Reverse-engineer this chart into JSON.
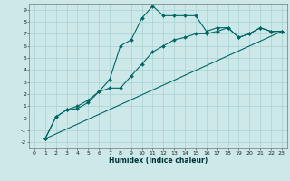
{
  "xlabel": "Humidex (Indice chaleur)",
  "bg_color": "#cce8e8",
  "grid_color": "#aad0d0",
  "line_color": "#006666",
  "xlim": [
    -0.5,
    23.5
  ],
  "ylim": [
    -2.5,
    9.5
  ],
  "xticks": [
    0,
    1,
    2,
    3,
    4,
    5,
    6,
    7,
    8,
    9,
    10,
    11,
    12,
    13,
    14,
    15,
    16,
    17,
    18,
    19,
    20,
    21,
    22,
    23
  ],
  "yticks": [
    -2,
    -1,
    0,
    1,
    2,
    3,
    4,
    5,
    6,
    7,
    8,
    9
  ],
  "line1_x": [
    1,
    2,
    3,
    4,
    5,
    6,
    7,
    8,
    9,
    10,
    11,
    12,
    13,
    14,
    15,
    16,
    17,
    18,
    19,
    20,
    21,
    22,
    23
  ],
  "line1_y": [
    -1.7,
    0.1,
    0.7,
    0.8,
    1.3,
    2.2,
    3.2,
    6.0,
    6.5,
    8.3,
    9.3,
    8.5,
    8.5,
    8.5,
    8.5,
    7.2,
    7.5,
    7.5,
    6.7,
    7.0,
    7.5,
    7.2,
    7.2
  ],
  "line2_x": [
    1,
    2,
    3,
    4,
    5,
    6,
    7,
    8,
    9,
    10,
    11,
    12,
    13,
    14,
    15,
    16,
    17,
    18,
    19,
    20,
    21,
    22,
    23
  ],
  "line2_y": [
    -1.7,
    0.1,
    0.7,
    1.0,
    1.5,
    2.2,
    2.5,
    2.5,
    3.5,
    4.5,
    5.5,
    6.0,
    6.5,
    6.7,
    7.0,
    7.0,
    7.2,
    7.5,
    6.7,
    7.0,
    7.5,
    7.2,
    7.2
  ],
  "line3_x": [
    1,
    23
  ],
  "line3_y": [
    -1.7,
    7.2
  ],
  "xlabel_fontsize": 5.5,
  "tick_fontsize": 4.5
}
